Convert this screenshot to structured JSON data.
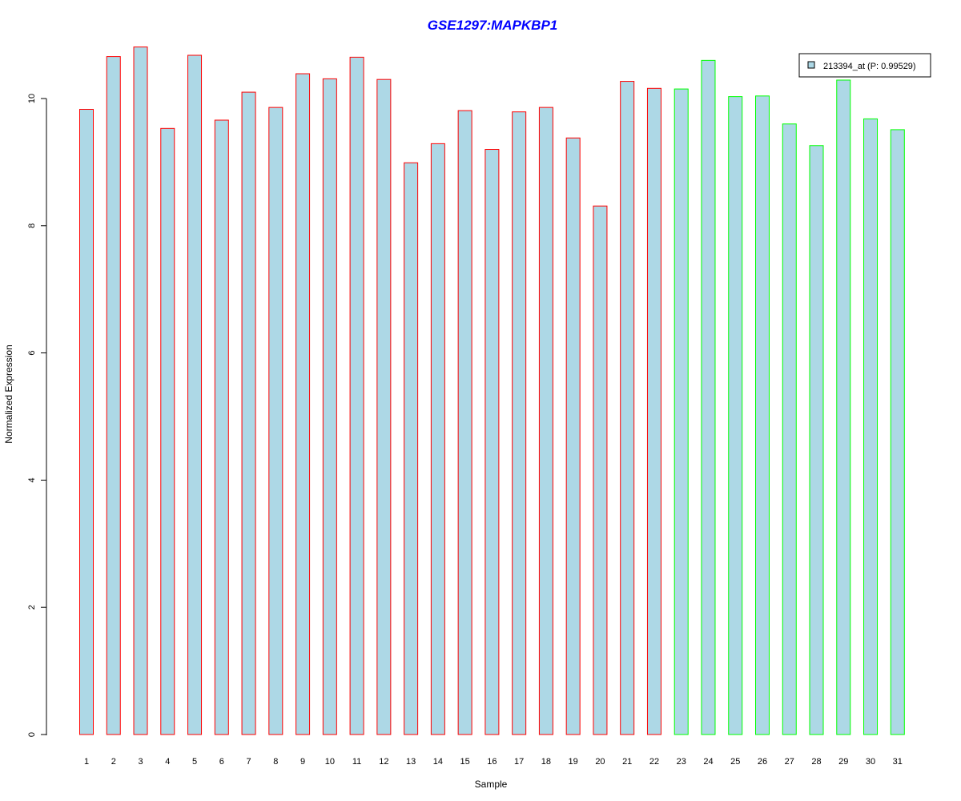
{
  "chart_data": {
    "type": "bar",
    "title": "GSE1297:MAPKBP1",
    "title_color": "#0000ff",
    "xlabel": "Sample",
    "ylabel": "Normalized Expression",
    "ylim": [
      0,
      10.8
    ],
    "yticks": [
      0,
      2,
      4,
      6,
      8,
      10
    ],
    "ytick_labels": [
      "0",
      "2",
      "4",
      "6",
      "8",
      "10"
    ],
    "grid": false,
    "bar_fill": "#add8e6",
    "categories": [
      "1",
      "2",
      "3",
      "4",
      "5",
      "6",
      "7",
      "8",
      "9",
      "10",
      "11",
      "12",
      "13",
      "14",
      "15",
      "16",
      "17",
      "18",
      "19",
      "20",
      "21",
      "22",
      "23",
      "24",
      "25",
      "26",
      "27",
      "28",
      "29",
      "30",
      "31"
    ],
    "values": [
      9.83,
      10.66,
      10.81,
      9.53,
      10.68,
      9.66,
      10.1,
      9.86,
      10.39,
      10.31,
      10.65,
      10.3,
      8.99,
      9.29,
      9.81,
      9.2,
      9.79,
      9.86,
      9.38,
      8.31,
      10.27,
      10.16,
      10.15,
      10.6,
      10.03,
      10.04,
      9.6,
      9.26,
      10.29,
      9.68,
      9.51
    ],
    "groups": [
      {
        "color": "#ff0000",
        "start": 0,
        "end": 21
      },
      {
        "color": "#00ff00",
        "start": 22,
        "end": 30
      }
    ],
    "legend": {
      "position": "top-right",
      "label": "213394_at (P: 0.99529)"
    }
  }
}
